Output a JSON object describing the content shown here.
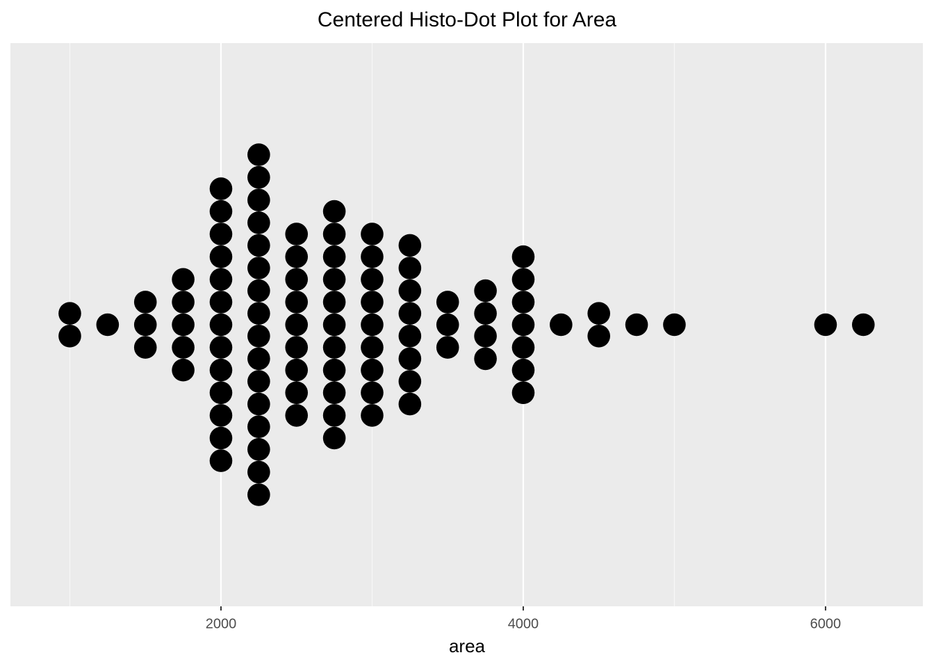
{
  "chart_data": {
    "type": "dotplot",
    "title": "Centered Histo-Dot Plot for Area",
    "x_label": "area",
    "x": [
      1000,
      1250,
      1500,
      1750,
      2000,
      2250,
      2500,
      2750,
      3000,
      3250,
      3500,
      3750,
      4000,
      4250,
      4500,
      4750,
      5000,
      6000,
      6250
    ],
    "counts": [
      2,
      1,
      3,
      5,
      13,
      16,
      9,
      11,
      9,
      8,
      3,
      4,
      7,
      1,
      2,
      1,
      1,
      1,
      1
    ],
    "color": "#000000",
    "xlim": [
      607,
      6644
    ],
    "xticks": [
      2000,
      4000,
      6000
    ],
    "grid": true
  }
}
